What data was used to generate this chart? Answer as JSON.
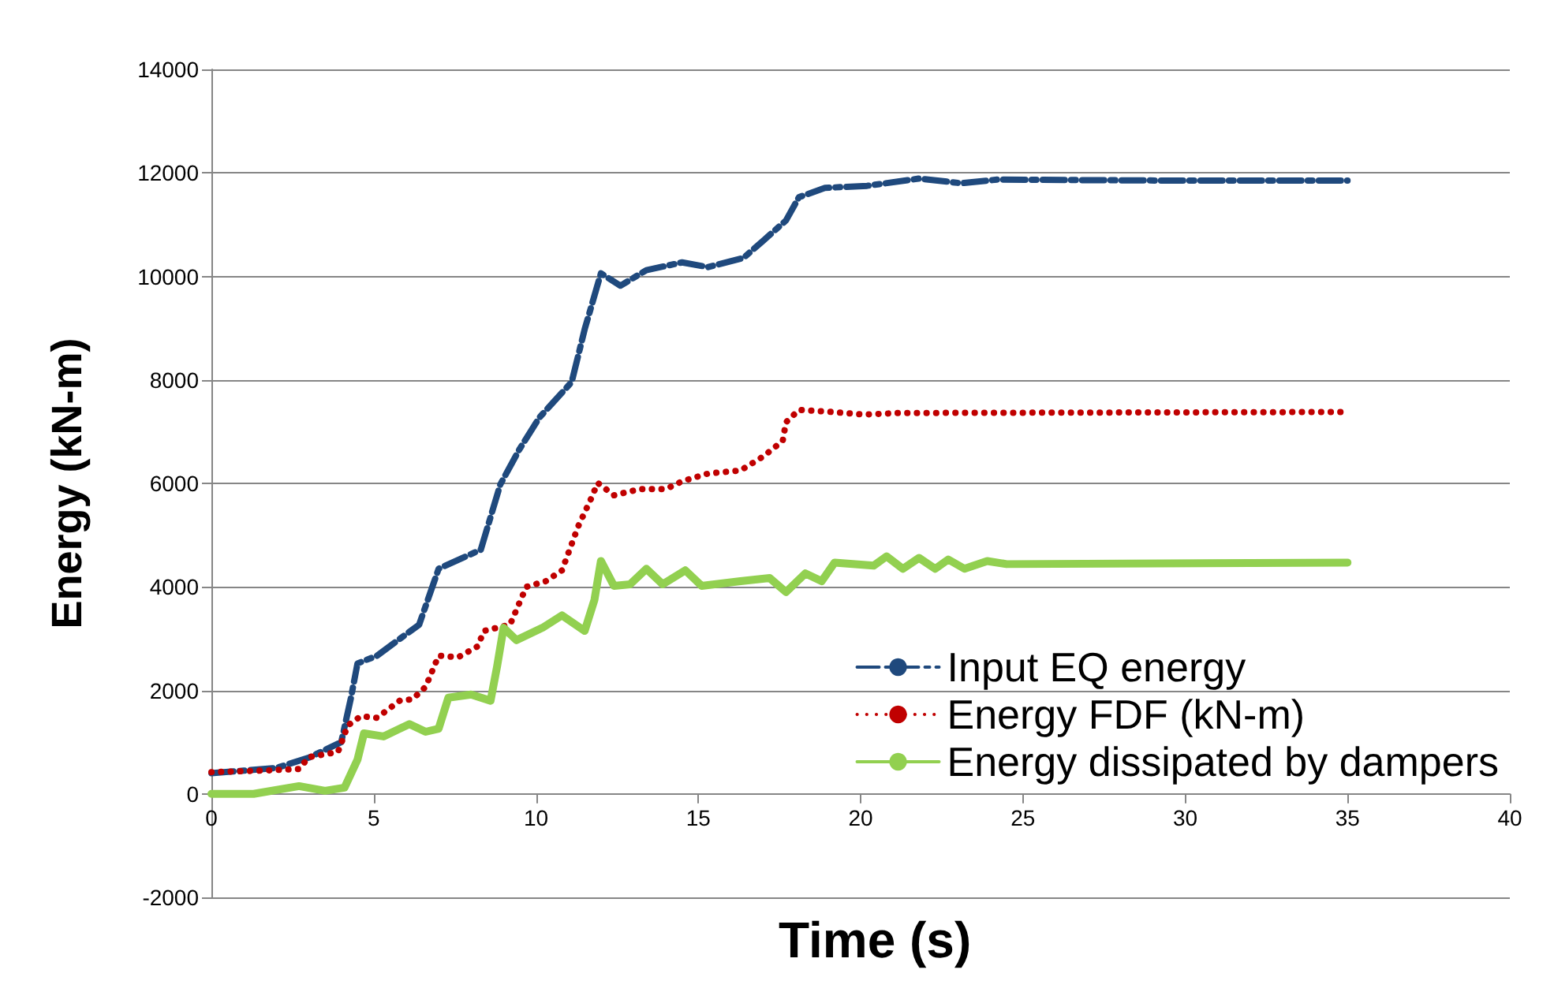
{
  "chart_data": {
    "type": "line",
    "xlabel": "Time (s)",
    "ylabel": "Energy (kN-m)",
    "xlim": [
      0,
      40
    ],
    "xticks": [
      0,
      5,
      10,
      15,
      20,
      25,
      30,
      35,
      40
    ],
    "ylim": [
      -2000,
      14000
    ],
    "yticks": [
      -2000,
      0,
      2000,
      4000,
      6000,
      8000,
      10000,
      12000,
      14000
    ],
    "grid": "y",
    "legend": "bottom right",
    "marker": "none",
    "series": [
      {
        "name": "Input EQ energy",
        "color": "#1f497d",
        "line_style": "dashed",
        "x": [
          0,
          1,
          2,
          3,
          4,
          4.3,
          4.5,
          5.1,
          6.4,
          7.0,
          8.3,
          8.9,
          9.5,
          10.1,
          11.1,
          11.5,
          12.0,
          12.6,
          13.4,
          14.5,
          15.3,
          16.4,
          17.0,
          17.7,
          18.1,
          18.9,
          20.2,
          21.8,
          23.1,
          24.2,
          30,
          35
        ],
        "values": [
          400,
          450,
          500,
          700,
          1000,
          1860,
          2520,
          2670,
          3270,
          4350,
          4720,
          5980,
          6670,
          7270,
          7960,
          8980,
          10060,
          9820,
          10120,
          10270,
          10180,
          10360,
          10690,
          11080,
          11530,
          11710,
          11750,
          11890,
          11800,
          11870,
          11850,
          11850
        ]
      },
      {
        "name": "Energy FDF (kN-m)",
        "color": "#c00000",
        "line_style": "dotted",
        "x": [
          0,
          1.6,
          2.7,
          3,
          3.9,
          4.2,
          4.6,
          5.1,
          5.8,
          6.2,
          6.6,
          7.0,
          7.6,
          8.2,
          8.4,
          9.2,
          9.7,
          10.3,
          10.8,
          11.3,
          11.7,
          11.9,
          12.4,
          13.2,
          14.0,
          14.5,
          15.3,
          16.3,
          17.0,
          17.6,
          17.7,
          18.1,
          18.9,
          20.1,
          21.2,
          35
        ],
        "values": [
          420,
          450,
          480,
          710,
          810,
          1320,
          1500,
          1470,
          1800,
          1830,
          2070,
          2670,
          2640,
          2850,
          3150,
          3270,
          4000,
          4110,
          4320,
          5170,
          5710,
          6010,
          5770,
          5890,
          5890,
          6040,
          6190,
          6250,
          6520,
          6820,
          7180,
          7420,
          7390,
          7330,
          7360,
          7380
        ]
      },
      {
        "name": "Energy dissipated by dampers",
        "color": "#92d050",
        "line_style": "solid",
        "x": [
          0,
          1.3,
          2.7,
          3.5,
          4.1,
          4.5,
          4.7,
          5.3,
          6.1,
          6.6,
          7.0,
          7.3,
          8.0,
          8.6,
          8.8,
          9.0,
          9.4,
          10.2,
          10.8,
          11.5,
          11.8,
          12.0,
          12.4,
          12.9,
          13.4,
          13.9,
          14.6,
          15.1,
          16.3,
          17.2,
          17.7,
          18.3,
          18.8,
          19.2,
          20.4,
          20.8,
          21.3,
          21.8,
          22.3,
          22.7,
          23.2,
          23.9,
          24.5,
          35
        ],
        "values": [
          0,
          0,
          150,
          60,
          120,
          660,
          1170,
          1110,
          1350,
          1200,
          1260,
          1860,
          1920,
          1800,
          2460,
          3210,
          2970,
          3210,
          3450,
          3150,
          3750,
          4500,
          4020,
          4050,
          4350,
          4050,
          4320,
          4020,
          4110,
          4170,
          3900,
          4260,
          4110,
          4470,
          4410,
          4590,
          4350,
          4560,
          4350,
          4530,
          4350,
          4500,
          4440,
          4470
        ]
      }
    ]
  }
}
